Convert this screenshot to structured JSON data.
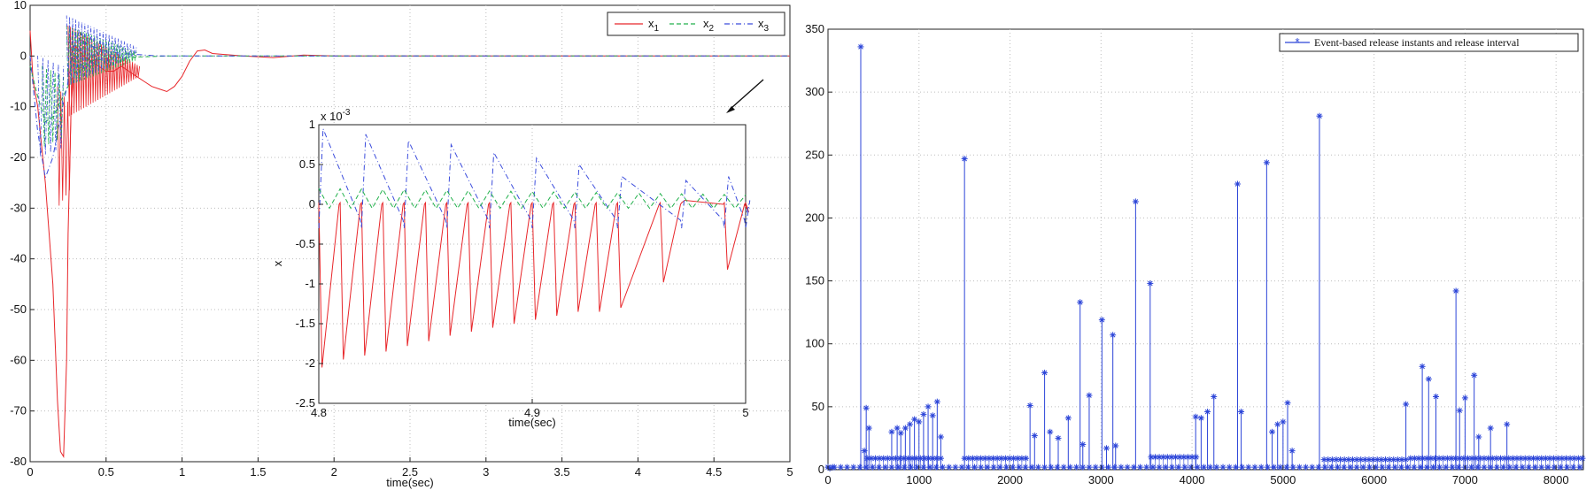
{
  "chart_data": [
    {
      "type": "line",
      "title": "",
      "xlabel": "time(sec)",
      "ylabel": "",
      "xlim": [
        0,
        5
      ],
      "ylim": [
        -80,
        10
      ],
      "xticks": [
        "0",
        "0.5",
        "1",
        "1.5",
        "2",
        "2.5",
        "3",
        "3.5",
        "4",
        "4.5",
        "5"
      ],
      "yticks": [
        "10",
        "0",
        "-10",
        "-20",
        "-30",
        "-40",
        "-50",
        "-60",
        "-70",
        "-80"
      ],
      "grid": true,
      "legend_position": "top-right",
      "series": [
        {
          "name": "x",
          "subscript": "1",
          "color": "#e8262a",
          "style": "solid",
          "x": [
            0,
            0.02,
            0.05,
            0.1,
            0.15,
            0.18,
            0.2,
            0.22,
            0.24,
            0.25,
            0.27,
            0.3,
            0.35,
            0.4,
            0.45,
            0.5,
            0.55,
            0.6,
            0.65,
            0.7,
            0.75,
            0.8,
            0.85,
            0.9,
            0.95,
            1.0,
            1.05,
            1.1,
            1.15,
            1.2,
            1.4,
            1.6,
            1.8,
            2.0,
            2.5,
            3.0,
            3.5,
            4.0,
            4.5,
            5.0
          ],
          "y": [
            5,
            -5,
            -10,
            -25,
            -45,
            -68,
            -78,
            -79,
            -60,
            -35,
            -10,
            2,
            0,
            -1,
            -2,
            -3,
            -3,
            -2,
            -3,
            -4,
            -5,
            -6,
            -6.5,
            -7,
            -6,
            -4,
            -1,
            1,
            1.2,
            0.5,
            0,
            -0.3,
            0.2,
            0,
            0,
            0,
            0,
            0,
            0,
            0
          ]
        },
        {
          "name": "x",
          "subscript": "2",
          "color": "#22b14c",
          "style": "dashed",
          "x": [
            0,
            0.05,
            0.1,
            0.15,
            0.2,
            0.25,
            0.3,
            0.4,
            0.5,
            0.6,
            0.7,
            0.8,
            0.9,
            1.0,
            1.5,
            2.0,
            3.0,
            4.0,
            5.0
          ],
          "y": [
            -2,
            -8,
            -13,
            -12,
            -9,
            -6,
            -3,
            -1,
            -0.5,
            -0.3,
            -0.2,
            -0.1,
            0,
            0,
            0,
            0,
            0,
            0,
            0
          ]
        },
        {
          "name": "x",
          "subscript": "3",
          "color": "#3b4cdc",
          "style": "dashdot",
          "x": [
            0,
            0.05,
            0.1,
            0.15,
            0.2,
            0.25,
            0.3,
            0.4,
            0.5,
            0.6,
            0.7,
            0.8,
            0.9,
            1.0,
            1.5,
            2.0,
            3.0,
            4.0,
            5.0
          ],
          "y": [
            0,
            -15,
            -24,
            -20,
            -12,
            -5,
            4,
            2,
            1,
            0.5,
            0.3,
            0.1,
            0,
            0,
            0,
            0,
            0,
            0,
            0
          ]
        }
      ]
    },
    {
      "type": "line",
      "title": "",
      "xlabel": "time(sec)",
      "ylabel": "x",
      "scale_label": "x 10",
      "scale_exponent": "-3",
      "xlim": [
        4.8,
        5
      ],
      "ylim": [
        -2.5,
        1
      ],
      "xticks": [
        "4.8",
        "4.9",
        "5"
      ],
      "yticks": [
        "1",
        "0.5",
        "0",
        "-0.5",
        "-1",
        "-1.5",
        "-2",
        "-2.5"
      ],
      "grid": true,
      "series": [
        {
          "name": "x",
          "subscript": "1",
          "color": "#e8262a",
          "x": [
            4.8,
            4.81,
            4.82,
            4.83,
            4.84,
            4.85,
            4.86,
            4.87,
            4.88,
            4.89,
            4.9,
            4.91,
            4.92,
            4.93,
            4.94,
            4.96,
            4.97,
            4.99,
            5.0
          ],
          "y": [
            -2.05,
            -1.95,
            -1.9,
            -1.85,
            -1.78,
            -1.72,
            -1.65,
            -1.6,
            -1.55,
            -1.5,
            -1.45,
            -1.4,
            -1.35,
            -1.35,
            -1.3,
            -0.98,
            0.05,
            -0.82,
            -0.1
          ]
        },
        {
          "name": "x",
          "subscript": "2",
          "color": "#22b14c",
          "x": [
            4.8,
            4.85,
            4.9,
            4.95,
            5.0
          ],
          "y": [
            0.1,
            0.08,
            0.06,
            0.04,
            0.02
          ]
        },
        {
          "name": "x",
          "subscript": "3",
          "color": "#3b4cdc",
          "x": [
            4.8,
            4.82,
            4.84,
            4.86,
            4.88,
            4.9,
            4.92,
            4.94,
            4.97,
            4.99,
            5.0
          ],
          "y": [
            0.95,
            0.88,
            0.8,
            0.75,
            0.65,
            0.58,
            0.5,
            0.35,
            0.3,
            0.35,
            0.05
          ]
        }
      ]
    },
    {
      "type": "scatter",
      "title": "",
      "xlabel": "",
      "ylabel": "",
      "xlim": [
        0,
        8300
      ],
      "ylim": [
        0,
        350
      ],
      "xticks": [
        "0",
        "1000",
        "2000",
        "3000",
        "4000",
        "5000",
        "6000",
        "7000",
        "8000"
      ],
      "yticks": [
        "350",
        "300",
        "250",
        "200",
        "150",
        "100",
        "50",
        "0"
      ],
      "grid": true,
      "legend_position": "top-right",
      "series": [
        {
          "name": "Event-based release instants and release interval",
          "color": "#2b44d8",
          "marker": "asterisk",
          "stem": true,
          "x": [
            0,
            20,
            50,
            360,
            400,
            420,
            450,
            700,
            760,
            800,
            850,
            900,
            950,
            1000,
            1050,
            1100,
            1150,
            1200,
            1240,
            1500,
            2220,
            2270,
            2380,
            2440,
            2530,
            2640,
            2770,
            2800,
            2870,
            3010,
            3060,
            3130,
            3160,
            3380,
            3540,
            4040,
            4100,
            4170,
            4240,
            4500,
            4540,
            4820,
            4880,
            4940,
            5000,
            5050,
            5100,
            5400,
            6350,
            6530,
            6600,
            6680,
            6900,
            6940,
            7000,
            7100,
            7150,
            7280,
            7460
          ],
          "y": [
            2,
            1,
            2,
            336,
            15,
            49,
            33,
            30,
            33,
            29,
            33,
            36,
            40,
            38,
            44,
            50,
            43,
            54,
            26,
            247,
            51,
            27,
            77,
            30,
            25,
            41,
            133,
            20,
            59,
            119,
            17,
            107,
            19,
            213,
            148,
            42,
            41,
            46,
            58,
            227,
            46,
            244,
            30,
            36,
            38,
            53,
            15,
            281,
            52,
            82,
            72,
            58,
            142,
            47,
            57,
            75,
            26,
            33,
            36
          ]
        },
        {
          "name": "",
          "color": "#2b44d8",
          "marker": "asterisk",
          "stem": true,
          "dense": true,
          "bands": [
            [
              430,
              1250,
              9
            ],
            [
              1500,
              2200,
              9
            ],
            [
              3550,
              4050,
              10
            ],
            [
              5450,
              6350,
              8
            ],
            [
              6400,
              8300,
              9
            ]
          ]
        }
      ]
    }
  ],
  "annotation": {
    "label": "arrow"
  }
}
